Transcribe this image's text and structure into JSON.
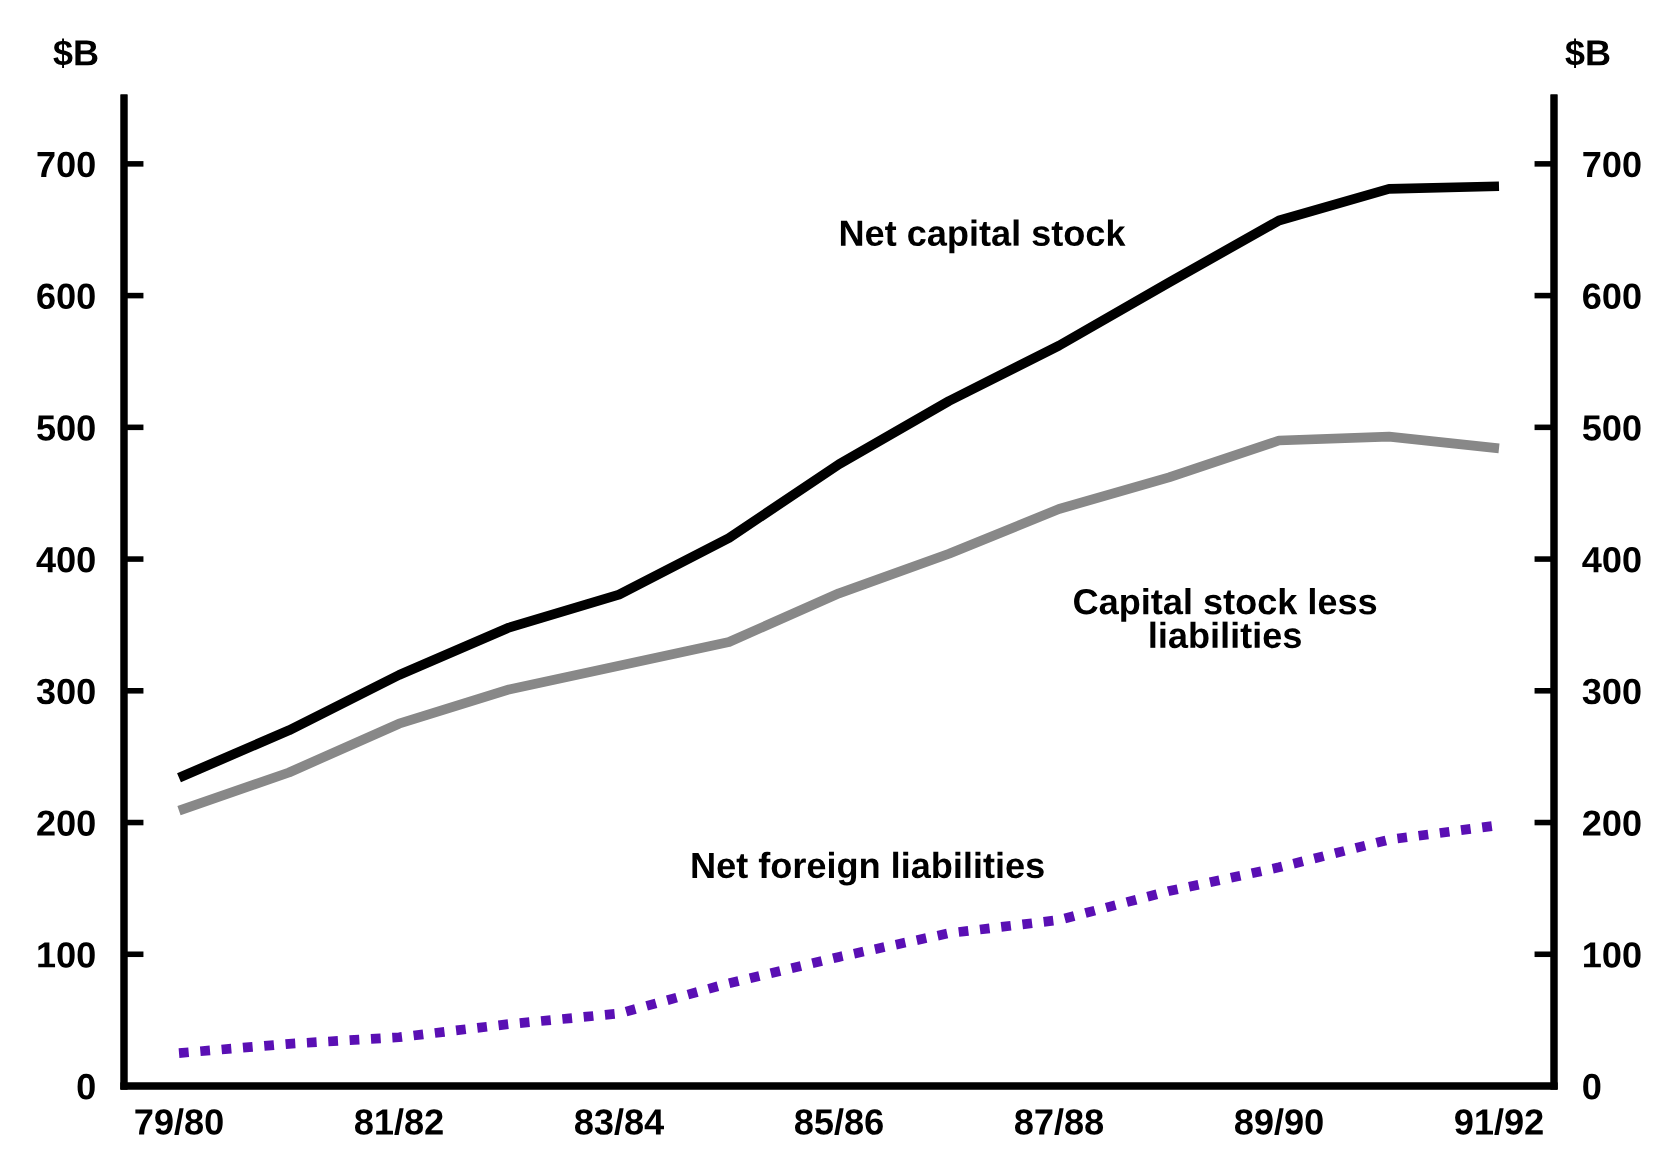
{
  "chart_data": {
    "type": "line",
    "ylabel": "$B",
    "y2label": "$B",
    "categories": [
      "79/80",
      null,
      "81/82",
      null,
      "83/84",
      null,
      "85/86",
      null,
      "87/88",
      null,
      "89/90",
      null,
      "91/92"
    ],
    "series": [
      {
        "name": "Net capital stock",
        "color": "#000000",
        "line_style": "solid",
        "values": [
          234,
          270,
          312,
          348,
          373,
          416,
          472,
          520,
          562,
          610,
          657,
          681,
          683
        ]
      },
      {
        "name": "Capital stock less liabilities",
        "color": "#888888",
        "line_style": "solid",
        "values": [
          209,
          238,
          275,
          301,
          319,
          337,
          374,
          404,
          438,
          462,
          490,
          493,
          484
        ]
      },
      {
        "name": "Net foreign liabilities",
        "color": "#5a0fb4",
        "line_style": "dotted",
        "values": [
          25,
          32,
          37,
          47,
          55,
          78,
          98,
          116,
          126,
          148,
          166,
          187,
          198
        ]
      }
    ],
    "ylim": [
      0,
      750
    ],
    "yticks": [
      0,
      100,
      200,
      300,
      400,
      500,
      600,
      700
    ],
    "y2lim": [
      0,
      750
    ],
    "y2ticks": [
      0,
      100,
      200,
      300,
      400,
      500,
      600,
      700
    ],
    "grid": false,
    "legend": false,
    "marker": "none"
  }
}
